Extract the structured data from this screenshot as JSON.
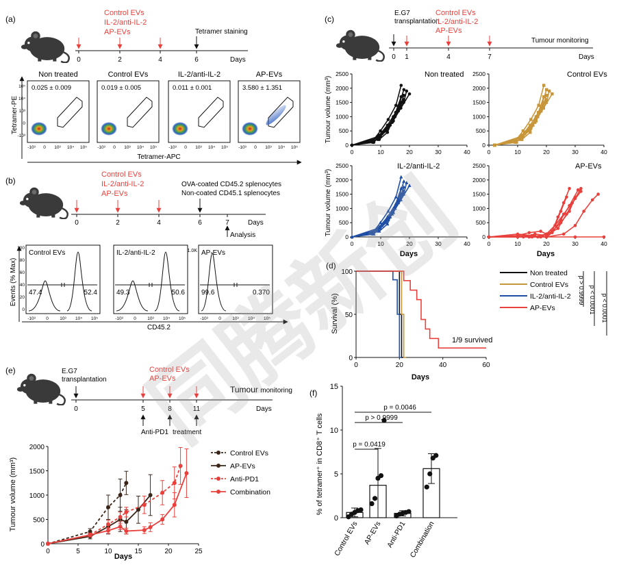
{
  "watermark": "同腾新创",
  "colors": {
    "red": "#e8403c",
    "black": "#111111",
    "gold": "#c8963a",
    "blue": "#1f4fa5",
    "dark": "#3a2418",
    "gray": "#666666"
  },
  "panel_a": {
    "label": "(a)",
    "treatments": [
      "Control EVs",
      "IL-2/anti-IL-2",
      "AP-EVs"
    ],
    "stain_label": "Tetramer staining",
    "days_label": "Days",
    "day_ticks": [
      "0",
      "2",
      "4",
      "6"
    ],
    "flow_titles": [
      "Non treated",
      "Control EVs",
      "IL-2/anti-IL-2",
      "AP-EVs"
    ],
    "flow_values": [
      "0.025 ± 0.009",
      "0.019 ± 0.005",
      "0.011 ± 0.001",
      "3.580 ± 1.351"
    ],
    "y_axis": "Tetramer-PE",
    "x_axis": "Tetramer-APC"
  },
  "panel_b": {
    "label": "(b)",
    "treatments": [
      "Control EVs",
      "IL-2/anti-IL-2",
      "AP-EVs"
    ],
    "cells_1": "OVA-coated CD45.2 splenocytes",
    "cells_2": "Non-coated CD45.1 splenocytes",
    "days_label": "Days",
    "day_ticks": [
      "0",
      "2",
      "4",
      "6",
      "7"
    ],
    "analysis": "Analysis",
    "hist_titles": [
      "Control EVs",
      "IL-2/anti-IL-2",
      "AP-EVs"
    ],
    "left_pct": [
      "47.4",
      "49.3",
      "99.6"
    ],
    "right_pct": [
      "52.4",
      "50.6",
      "0.370"
    ],
    "y_axis": "Events (% Max)",
    "x_axis": "CD45.2",
    "ytick_1k": "1.0K"
  },
  "panel_c": {
    "label": "(c)",
    "transplant": [
      "E.G7",
      "transplantation"
    ],
    "treatments": [
      "Control EVs",
      "IL-2/anti-IL-2",
      "AP-EVs"
    ],
    "day_ticks": [
      "0",
      "1",
      "4",
      "7"
    ],
    "monitoring": "Tumour monitoring",
    "days_label": "Days",
    "y_axis": "Tumour volume (mm³)",
    "x_axis": "Days",
    "plot_titles": [
      "Non treated",
      "Control EVs",
      "IL-2/anti-IL-2",
      "AP-EVs"
    ],
    "yticks": [
      "0",
      "500",
      "1000",
      "1500",
      "2000",
      "2500"
    ],
    "xticks": [
      "0",
      "10",
      "20",
      "30",
      "40"
    ]
  },
  "panel_d": {
    "label": "(d)",
    "y_axis": "Survival (%)",
    "x_axis": "Days",
    "yticks": [
      "0",
      "50",
      "100"
    ],
    "xticks": [
      "0",
      "20",
      "40",
      "60"
    ],
    "legend": [
      "Non treated",
      "Control EVs",
      "IL-2/anti-IL-2",
      "AP-EVs"
    ],
    "p1": "p > 0.9999",
    "p2": "p < 0.0001",
    "p3": "p < 0.0001",
    "survived": "1/9 survived"
  },
  "panel_e": {
    "label": "(e)",
    "transplant": [
      "E.G7",
      "transplantation"
    ],
    "treatments": [
      "Control EVs",
      "AP-EVs"
    ],
    "day_ticks": [
      "0",
      "5",
      "8",
      "11"
    ],
    "monitoring_big": "Tumour",
    "monitoring_small": "monitoring",
    "days_label": "Days",
    "anti_pd1": "Anti-PD1",
    "treatment": "treatment",
    "y_axis": "Tumour volume (mm³)",
    "x_axis": "Days",
    "yticks": [
      "0",
      "500",
      "1000",
      "1500",
      "2000"
    ],
    "xticks": [
      "0",
      "5",
      "10",
      "15",
      "20",
      "25"
    ],
    "legend": [
      "Control EVs",
      "AP-EVs",
      "Anti-PD1",
      "Combination"
    ]
  },
  "panel_f": {
    "label": "(f)",
    "y_axis": "% of tetramer⁺ in CD8⁺ T cells",
    "yticks": [
      "0",
      "5",
      "10",
      "15"
    ],
    "pvals": [
      "p = 0.0046",
      "p > 0.9999",
      "p = 0.0419"
    ]
  },
  "chart_data": [
    {
      "type": "line",
      "xlabel": "Days",
      "ylabel": "Tumour volume (mm³)",
      "ylim": [
        0,
        2000
      ],
      "xlim": [
        0,
        25
      ],
      "series": [
        {
          "name": "Control EVs",
          "x": [
            0,
            7,
            10,
            12,
            13
          ],
          "y": [
            0,
            250,
            750,
            1000,
            1250
          ],
          "err": [
            0,
            60,
            250,
            330,
            240
          ]
        },
        {
          "name": "AP-EVs",
          "x": [
            0,
            7,
            10,
            12,
            13,
            15,
            17
          ],
          "y": [
            0,
            150,
            350,
            500,
            450,
            700,
            1000
          ],
          "err": [
            0,
            50,
            150,
            250,
            250,
            280,
            420
          ]
        },
        {
          "name": "Anti-PD1",
          "x": [
            0,
            7,
            10,
            12,
            13,
            16,
            19,
            21,
            22
          ],
          "y": [
            0,
            180,
            400,
            550,
            650,
            800,
            1050,
            1250,
            1600
          ],
          "err": [
            0,
            40,
            80,
            100,
            100,
            180,
            250,
            330,
            380
          ]
        },
        {
          "name": "Combination",
          "x": [
            0,
            7,
            10,
            12,
            13,
            16,
            17,
            19,
            21,
            23
          ],
          "y": [
            0,
            180,
            270,
            350,
            260,
            280,
            340,
            500,
            800,
            1450
          ],
          "err": [
            0,
            30,
            60,
            60,
            60,
            70,
            90,
            100,
            250,
            500
          ]
        }
      ]
    },
    {
      "type": "bar",
      "ylabel": "% of tetramer⁺ in CD8⁺ T cells",
      "ylim": [
        0,
        15
      ],
      "categories": [
        "Control EVs",
        "AP-EVs",
        "Anti-PD1",
        "Combination"
      ],
      "values": [
        0.6,
        3.7,
        0.5,
        5.6
      ],
      "err": [
        0.5,
        4.2,
        0.3,
        1.7
      ],
      "points": [
        [
          0.1,
          0.4,
          0.6,
          0.8,
          0.9
        ],
        [
          1.6,
          2.2,
          4.5,
          4.8,
          11.1
        ],
        [
          0.2,
          0.4,
          0.5,
          0.6,
          0.7
        ],
        [
          3.5,
          5.0,
          6.8,
          7.1
        ]
      ]
    },
    {
      "type": "line",
      "xlabel": "Days",
      "ylabel": "Survival (%)",
      "ylim": [
        0,
        100
      ],
      "xlim": [
        0,
        60
      ],
      "series": [
        {
          "name": "Non treated",
          "x": [
            0,
            18,
            20,
            20,
            21,
            21,
            22
          ],
          "y": [
            100,
            100,
            100,
            50,
            50,
            0,
            0
          ]
        },
        {
          "name": "Control EVs",
          "x": [
            0,
            19,
            21,
            21,
            22,
            22,
            23
          ],
          "y": [
            100,
            100,
            100,
            50,
            50,
            0,
            0
          ]
        },
        {
          "name": "IL-2/anti-IL-2",
          "x": [
            0,
            16,
            17,
            17,
            19,
            19,
            20,
            20,
            21
          ],
          "y": [
            100,
            100,
            100,
            90,
            90,
            50,
            50,
            0,
            0
          ]
        },
        {
          "name": "AP-EVs",
          "x": [
            0,
            20,
            22,
            22,
            25,
            25,
            28,
            28,
            30,
            30,
            32,
            32,
            34,
            34,
            38,
            38,
            60
          ],
          "y": [
            100,
            100,
            100,
            89,
            89,
            78,
            78,
            67,
            67,
            44,
            44,
            33,
            33,
            22,
            22,
            11,
            11
          ]
        }
      ]
    }
  ]
}
